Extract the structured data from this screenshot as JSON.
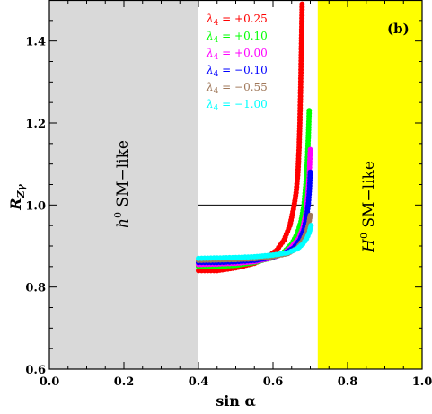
{
  "chart_data": {
    "type": "scatter",
    "title": "",
    "panel_label": "(b)",
    "xlabel": "sin α",
    "ylabel": "R_Zγ",
    "xlim": [
      0.0,
      1.0
    ],
    "ylim": [
      0.6,
      1.5
    ],
    "x_ticks": [
      "0.0",
      "0.2",
      "0.4",
      "0.6",
      "0.8",
      "1.0"
    ],
    "y_ticks": [
      "0.6",
      "0.8",
      "1.0",
      "1.2",
      "1.4"
    ],
    "reference_line": {
      "y": 1.0,
      "x_range": [
        0.4,
        0.71
      ]
    },
    "regions": [
      {
        "label_base": "h",
        "label_sup": "0",
        "label_rest": " SM−like",
        "x_range": [
          0.0,
          0.4
        ],
        "color": "#d9d9d9"
      },
      {
        "label_base": "H",
        "label_sup": "0",
        "label_rest": " SM−like",
        "x_range": [
          0.72,
          1.0
        ],
        "color": "#ffff00"
      }
    ],
    "series": [
      {
        "name": "λ4 = +0.25",
        "color": "#ff0000",
        "x": [
          0.4,
          0.45,
          0.5,
          0.55,
          0.58,
          0.61,
          0.63,
          0.645,
          0.655,
          0.662,
          0.667,
          0.67,
          0.672,
          0.674,
          0.676,
          0.678
        ],
        "y": [
          0.84,
          0.84,
          0.847,
          0.858,
          0.87,
          0.89,
          0.915,
          0.95,
          0.99,
          1.03,
          1.08,
          1.14,
          1.2,
          1.28,
          1.38,
          1.49
        ]
      },
      {
        "name": "λ4 = +0.10",
        "color": "#00ff00",
        "x": [
          0.4,
          0.45,
          0.5,
          0.55,
          0.6,
          0.63,
          0.65,
          0.665,
          0.675,
          0.683,
          0.688,
          0.692,
          0.695,
          0.697
        ],
        "y": [
          0.85,
          0.85,
          0.853,
          0.86,
          0.872,
          0.886,
          0.905,
          0.93,
          0.96,
          1.0,
          1.05,
          1.11,
          1.17,
          1.23
        ]
      },
      {
        "name": "λ4 = +0.00",
        "color": "#ff00ff",
        "x": [
          0.4,
          0.45,
          0.5,
          0.55,
          0.6,
          0.63,
          0.65,
          0.67,
          0.68,
          0.688,
          0.693,
          0.697,
          0.7
        ],
        "y": [
          0.855,
          0.856,
          0.858,
          0.862,
          0.872,
          0.883,
          0.898,
          0.92,
          0.945,
          0.98,
          1.02,
          1.07,
          1.135
        ]
      },
      {
        "name": "λ4 = −0.10",
        "color": "#0000ff",
        "x": [
          0.4,
          0.45,
          0.5,
          0.55,
          0.6,
          0.63,
          0.655,
          0.672,
          0.683,
          0.69,
          0.695,
          0.698,
          0.7
        ],
        "y": [
          0.86,
          0.86,
          0.862,
          0.865,
          0.873,
          0.882,
          0.895,
          0.915,
          0.94,
          0.97,
          1.005,
          1.04,
          1.08
        ]
      },
      {
        "name": "λ4 = −0.55",
        "color": "#a0785a",
        "x": [
          0.4,
          0.45,
          0.5,
          0.55,
          0.6,
          0.64,
          0.665,
          0.68,
          0.69,
          0.696,
          0.7
        ],
        "y": [
          0.865,
          0.866,
          0.867,
          0.869,
          0.874,
          0.882,
          0.895,
          0.915,
          0.935,
          0.955,
          0.975
        ]
      },
      {
        "name": "λ4 = −1.00",
        "color": "#00ffff",
        "x": [
          0.4,
          0.45,
          0.5,
          0.55,
          0.6,
          0.64,
          0.665,
          0.68,
          0.69,
          0.697,
          0.702
        ],
        "y": [
          0.87,
          0.871,
          0.872,
          0.874,
          0.878,
          0.884,
          0.893,
          0.905,
          0.918,
          0.932,
          0.95
        ]
      }
    ]
  }
}
